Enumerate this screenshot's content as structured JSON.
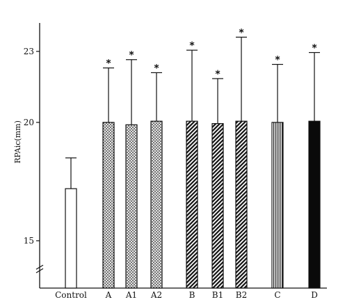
{
  "chart_data": {
    "type": "bar",
    "ylabel": "RPAic(mm)",
    "ylim": [
      13,
      24.2
    ],
    "axis_break": true,
    "yticks": [
      15,
      20,
      23
    ],
    "categories": [
      "Control",
      "A",
      "A1",
      "A2",
      "B",
      "B1",
      "B2",
      "C",
      "D"
    ],
    "values": [
      17.2,
      20.0,
      19.9,
      20.05,
      20.05,
      19.95,
      20.05,
      20.0,
      20.05
    ],
    "errors": [
      1.3,
      2.3,
      2.75,
      2.05,
      3.0,
      1.9,
      3.55,
      2.45,
      2.9
    ],
    "significant": [
      false,
      true,
      true,
      true,
      true,
      true,
      true,
      true,
      true
    ],
    "fills": [
      "white",
      "dotted",
      "dotted",
      "dotted",
      "hatched",
      "hatched",
      "hatched",
      "vertical-lines",
      "solid"
    ],
    "significance_marker": "*",
    "grid": false
  }
}
